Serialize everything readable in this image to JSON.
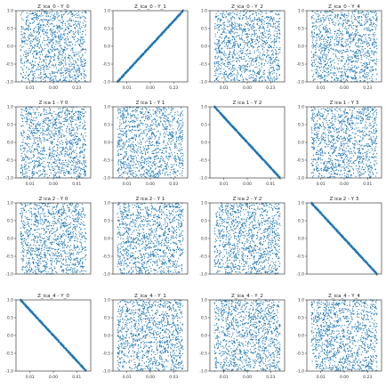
{
  "figure": {
    "marker_color": "#1f77b4"
  },
  "chart_data": [
    {
      "type": "scatter",
      "title": "Z_ica_0 - Y_0",
      "pattern": "uniform",
      "xlim": [
        -0.16,
        0.16
      ],
      "ylim": [
        -1.0,
        1.0
      ],
      "xticks": [
        -0.1,
        0.0,
        0.1
      ],
      "xtick_labels": [
        "0.01",
        "0.00",
        "0.23"
      ],
      "yticks": [
        -1.0,
        -0.5,
        0.0,
        0.5,
        1.0
      ],
      "ytick_labels": [
        "-1.0",
        "-0.5",
        "0.0",
        "0.5",
        "1.0"
      ]
    },
    {
      "type": "scatter",
      "title": "Z_ica_0 - Y_1",
      "pattern": "positive",
      "xlim": [
        -0.16,
        0.16
      ],
      "ylim": [
        -1.0,
        1.0
      ],
      "xticks": [
        -0.1,
        0.0,
        0.1
      ],
      "xtick_labels": [
        "0.01",
        "0.00",
        "0.23"
      ],
      "yticks": [
        -1.0,
        -0.5,
        0.0,
        0.5,
        1.0
      ],
      "ytick_labels": [
        "-1.0",
        "-0.5",
        "0.0",
        "0.5",
        "1.0"
      ]
    },
    {
      "type": "scatter",
      "title": "Z_ica_0 - Y_2",
      "pattern": "uniform",
      "xlim": [
        -0.16,
        0.16
      ],
      "ylim": [
        -1.0,
        1.0
      ],
      "xticks": [
        -0.1,
        0.0,
        0.1
      ],
      "xtick_labels": [
        "0.01",
        "0.00",
        "0.23"
      ],
      "yticks": [
        -1.0,
        -0.5,
        0.0,
        0.5,
        1.0
      ],
      "ytick_labels": [
        "-1.0",
        "-0.5",
        "0.0",
        "0.5",
        "1.0"
      ]
    },
    {
      "type": "scatter",
      "title": "Z_ica_0 - Y_4",
      "pattern": "uniform",
      "xlim": [
        -0.16,
        0.16
      ],
      "ylim": [
        -1.0,
        1.0
      ],
      "xticks": [
        -0.1,
        0.0,
        0.1
      ],
      "xtick_labels": [
        "0.01",
        "0.00",
        "0.23"
      ],
      "yticks": [
        -1.0,
        -0.5,
        0.0,
        0.5,
        1.0
      ],
      "ytick_labels": [
        "-1.0",
        "-0.5",
        "0.0",
        "0.5",
        "1.0"
      ]
    },
    {
      "type": "scatter",
      "title": "Z ica 1 - Y 0",
      "pattern": "uniform",
      "xlim": [
        -0.16,
        0.16
      ],
      "ylim": [
        -1.0,
        1.0
      ],
      "xticks": [
        -0.1,
        0.0,
        0.1
      ],
      "xtick_labels": [
        "0.01",
        "0.00",
        "0.01"
      ],
      "yticks": [
        -1.0,
        -0.5,
        0.0,
        0.5,
        1.0
      ],
      "ytick_labels": [
        "-1.0",
        "-0.5",
        "0.0",
        "0.5",
        "1.0"
      ]
    },
    {
      "type": "scatter",
      "title": "Z ica 1 - Y 1",
      "pattern": "uniform",
      "xlim": [
        -0.16,
        0.16
      ],
      "ylim": [
        -1.0,
        1.0
      ],
      "xticks": [
        -0.1,
        0.0,
        0.1
      ],
      "xtick_labels": [
        "0.01",
        "0.00",
        "0.03"
      ],
      "yticks": [
        -1.0,
        -0.5,
        0.0,
        0.5,
        1.0
      ],
      "ytick_labels": [
        "-1.0",
        "-0.5",
        "0.0",
        "0.5",
        "1.0"
      ]
    },
    {
      "type": "scatter",
      "title": "Z ica 1 - Y 2",
      "pattern": "negative",
      "xlim": [
        -0.16,
        0.16
      ],
      "ylim": [
        -1.0,
        1.0
      ],
      "xticks": [
        -0.1,
        0.0,
        0.1
      ],
      "xtick_labels": [
        "0.01",
        "0.00",
        "0.01"
      ],
      "yticks": [
        -1.0,
        -0.5,
        0.0,
        0.5,
        1.0
      ],
      "ytick_labels": [
        "-1.0",
        "-0.5",
        "0.0",
        "0.5",
        "1.0"
      ]
    },
    {
      "type": "scatter",
      "title": "Z ica 1 - Y 3",
      "pattern": "uniform",
      "xlim": [
        -0.16,
        0.16
      ],
      "ylim": [
        -1.0,
        1.0
      ],
      "xticks": [
        -0.1,
        0.0,
        0.1
      ],
      "xtick_labels": [
        "0.01",
        "0.00",
        "0.01"
      ],
      "yticks": [
        -1.0,
        -0.5,
        0.0,
        0.5,
        1.0
      ],
      "ytick_labels": [
        "-1.0",
        "-0.5",
        "0.0",
        "0.5",
        "1.0"
      ]
    },
    {
      "type": "scatter",
      "title": "Z ica 2 - Y 0",
      "pattern": "uniform",
      "xlim": [
        -0.16,
        0.16
      ],
      "ylim": [
        -1.0,
        1.0
      ],
      "xticks": [],
      "xtick_labels": [],
      "yticks": [
        -1.0,
        -0.5,
        0.0,
        0.5,
        1.0
      ],
      "ytick_labels": [
        "-1.0",
        "-0.5",
        "0.0",
        "0.5",
        "1.0"
      ]
    },
    {
      "type": "scatter",
      "title": "Z ica 2 - Y 1",
      "pattern": "uniform",
      "xlim": [
        -0.16,
        0.16
      ],
      "ylim": [
        -1.0,
        1.0
      ],
      "xticks": [],
      "xtick_labels": [],
      "yticks": [
        -1.0,
        -0.5,
        0.0,
        0.5,
        1.0
      ],
      "ytick_labels": [
        "-1.0",
        "-0.5",
        "0.0",
        "0.5",
        "1.0"
      ]
    },
    {
      "type": "scatter",
      "title": "Z ica 2 - Y 2",
      "pattern": "uniform",
      "xlim": [
        -0.16,
        0.16
      ],
      "ylim": [
        -1.0,
        1.0
      ],
      "xticks": [],
      "xtick_labels": [],
      "yticks": [
        -1.0,
        -0.5,
        0.0,
        0.5,
        1.0
      ],
      "ytick_labels": [
        "-1.0",
        "-0.5",
        "0.0",
        "0.5",
        "1.0"
      ]
    },
    {
      "type": "scatter",
      "title": "Z ica 2 - Y 3",
      "pattern": "negative",
      "xlim": [
        -0.16,
        0.16
      ],
      "ylim": [
        -1.0,
        1.0
      ],
      "xticks": [],
      "xtick_labels": [],
      "yticks": [
        -1.0,
        -0.5,
        0.0,
        0.5,
        1.0
      ],
      "ytick_labels": [
        "-1.0",
        "-0.5",
        "0.0",
        "0.5",
        "1.0"
      ]
    },
    {
      "type": "scatter",
      "title": "Z_ica_4 - Y_0",
      "pattern": "negative",
      "xlim": [
        -0.16,
        0.16
      ],
      "ylim": [
        -1.0,
        1.0
      ],
      "xticks": [
        -0.1,
        0.0,
        0.1
      ],
      "xtick_labels": [
        "0.01",
        "0.00",
        "0.01"
      ],
      "yticks": [
        -1.0,
        -0.5,
        0.0,
        0.5,
        1.0
      ],
      "ytick_labels": [
        "-1.0",
        "-0.5",
        "0.0",
        "0.5",
        "1.0"
      ]
    },
    {
      "type": "scatter",
      "title": "Z_ica_4 - Y_1",
      "pattern": "uniform",
      "xlim": [
        -0.16,
        0.16
      ],
      "ylim": [
        -1.0,
        1.0
      ],
      "xticks": [
        -0.1,
        0.0,
        0.1
      ],
      "xtick_labels": [
        "0.01",
        "0.00",
        "0.03"
      ],
      "yticks": [
        -1.0,
        -0.5,
        0.0,
        0.5,
        1.0
      ],
      "ytick_labels": [
        "-1.0",
        "-0.5",
        "0.0",
        "0.5",
        "1.0"
      ]
    },
    {
      "type": "scatter",
      "title": "Z_ica_4 - Y_2",
      "pattern": "uniform",
      "xlim": [
        -0.16,
        0.16
      ],
      "ylim": [
        -1.0,
        1.0
      ],
      "xticks": [
        -0.1,
        0.0,
        0.1
      ],
      "xtick_labels": [
        "0.01",
        "0.00",
        "0.23"
      ],
      "yticks": [
        -1.0,
        -0.5,
        0.0,
        0.5,
        1.0
      ],
      "ytick_labels": [
        "-1.0",
        "-0.5",
        "0.0",
        "0.5",
        "1.0"
      ]
    },
    {
      "type": "scatter",
      "title": "Z_ica_4 - Y_4",
      "pattern": "uniform",
      "xlim": [
        -0.16,
        0.16
      ],
      "ylim": [
        -1.0,
        1.0
      ],
      "xticks": [
        -0.1,
        0.0,
        0.1
      ],
      "xtick_labels": [
        "0.01",
        "0.00",
        "0.23"
      ],
      "yticks": [
        -1.0,
        -0.5,
        0.0,
        0.5,
        1.0
      ],
      "ytick_labels": [
        "-1.0",
        "-0.5",
        "0.0",
        "0.5",
        "1.0"
      ]
    }
  ]
}
